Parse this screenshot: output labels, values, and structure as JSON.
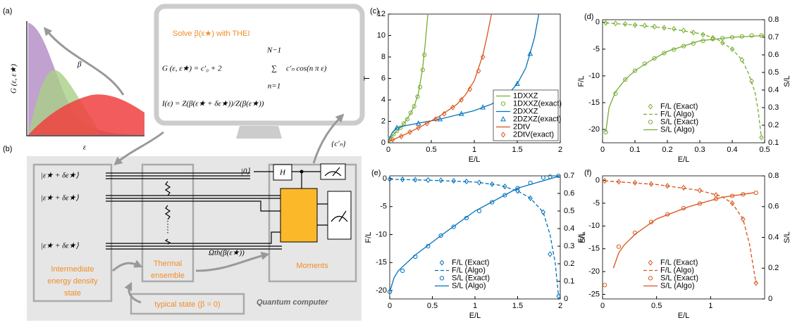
{
  "panel_a": {
    "label": "(a)",
    "y_label": "G (ε, ε★)",
    "x_label": "ε",
    "arrow_label": "β"
  },
  "monitor": {
    "title": "Solve β(ε★) with THEI",
    "eq1_left": "G (ε, ε★) = c′₀ + 2",
    "sum_top": "N−1",
    "sum": "∑",
    "sum_bottom": "n=1",
    "eq1_right": "c′ₙ cos(n π ε)",
    "eq2": "I(ε) = Z(β(ε★ + δε★))/Z(β(ε★))"
  },
  "panel_b": {
    "label": "(b)",
    "kets": [
      "|ε★ + δε★⟩",
      "|ε★ + δε★⟩",
      "|ε★ + δε★⟩"
    ],
    "ancilla": "|0⟩",
    "gate": "H",
    "omega": "Ωth(β(ε★))",
    "coefficients": "{c′ₙ}",
    "intermediate": [
      "Intermediate",
      "energy density",
      "state"
    ],
    "thermal": [
      "Thermal",
      "ensemble"
    ],
    "moments": "Moments",
    "typical": "typical state (β = 0)",
    "computer": "Quantum computer"
  },
  "chart_data": [
    {
      "type": "line",
      "label": "(c)",
      "x_label": "E/L",
      "y_label": "T",
      "xlim": [
        0,
        2
      ],
      "xticks": [
        0,
        0.5,
        1,
        1.5,
        2
      ],
      "ylim": [
        0,
        12
      ],
      "yticks": [
        0,
        2,
        4,
        6,
        8,
        10,
        12
      ],
      "legend": "southeast",
      "series": [
        {
          "name": "1DXXZ",
          "color": "#77ac30",
          "style": "solid",
          "marker": "none",
          "x": [
            0,
            0.05,
            0.1,
            0.15,
            0.2,
            0.25,
            0.3,
            0.35,
            0.4,
            0.43,
            0.46
          ],
          "values": [
            0.2,
            0.7,
            1.1,
            1.5,
            2,
            2.6,
            3.4,
            4.6,
            7,
            9.3,
            12
          ]
        },
        {
          "name": "1DXXZ(exact)",
          "color": "#77ac30",
          "style": "none",
          "marker": "circle",
          "x": [
            0.02,
            0.06,
            0.1,
            0.14,
            0.18,
            0.22,
            0.26,
            0.3,
            0.34,
            0.37,
            0.4,
            0.42
          ],
          "values": [
            0.4,
            0.8,
            1.1,
            1.4,
            1.8,
            2.2,
            2.8,
            3.4,
            4.3,
            5.2,
            6.8,
            8.2
          ]
        },
        {
          "name": "2DXXZ",
          "color": "#0072bd",
          "style": "solid",
          "marker": "none",
          "x": [
            0,
            0.05,
            0.1,
            0.2,
            0.4,
            0.6,
            0.8,
            1.0,
            1.2,
            1.4,
            1.5,
            1.6,
            1.7,
            1.75
          ],
          "values": [
            0.2,
            1.0,
            1.4,
            1.6,
            1.9,
            2.2,
            2.6,
            3.0,
            3.6,
            4.6,
            5.5,
            7,
            9.8,
            12
          ]
        },
        {
          "name": "2DZXZ(exact)",
          "color": "#0072bd",
          "style": "none",
          "marker": "triangle",
          "x": [
            0.1,
            0.35,
            0.6,
            0.85,
            1.1,
            1.3,
            1.5,
            1.65
          ],
          "values": [
            1.4,
            1.8,
            2.2,
            2.7,
            3.3,
            4,
            5.5,
            8.3
          ]
        },
        {
          "name": "2DtV",
          "color": "#d95319",
          "style": "solid",
          "marker": "none",
          "x": [
            0,
            0.2,
            0.4,
            0.6,
            0.8,
            0.9,
            1.0,
            1.1,
            1.15,
            1.2
          ],
          "values": [
            0.1,
            0.8,
            1.6,
            2.5,
            3.6,
            4.5,
            5.8,
            8.2,
            10,
            12
          ]
        },
        {
          "name": "2DtV(exact)",
          "color": "#d95319",
          "style": "none",
          "marker": "diamond",
          "x": [
            0.05,
            0.15,
            0.25,
            0.35,
            0.45,
            0.55,
            0.65,
            0.75,
            0.85,
            0.95,
            1.05,
            1.1
          ],
          "values": [
            0.3,
            0.6,
            1,
            1.4,
            1.8,
            2.2,
            2.7,
            3.3,
            4,
            5,
            6.7,
            8
          ]
        }
      ]
    },
    {
      "type": "line",
      "label": "(d)",
      "x_label": "E/L",
      "y_label": "F/L",
      "y2_label": "S/L",
      "xlim": [
        0,
        0.5
      ],
      "xticks": [
        0,
        0.1,
        0.2,
        0.3,
        0.4,
        0.5
      ],
      "ylim": [
        -22.5,
        0.5
      ],
      "yticks": [
        0,
        -5,
        -10,
        -15,
        -20
      ],
      "y2lim": [
        0.1,
        0.8
      ],
      "y2ticks": [
        0.1,
        0.2,
        0.3,
        0.4,
        0.5,
        0.6,
        0.7,
        0.8
      ],
      "legend": "south",
      "series": [
        {
          "name": "F/L (Exact)",
          "color": "#77ac30",
          "style": "none",
          "marker": "diamond",
          "x": [
            0.01,
            0.04,
            0.07,
            0.1,
            0.13,
            0.16,
            0.19,
            0.22,
            0.25,
            0.28,
            0.31,
            0.34,
            0.37,
            0.4,
            0.43,
            0.46,
            0.49
          ],
          "values": [
            -0.1,
            -0.2,
            -0.3,
            -0.5,
            -0.6,
            -0.8,
            -1,
            -1.2,
            -1.5,
            -1.9,
            -2.3,
            -2.9,
            -3.8,
            -5,
            -7,
            -11,
            -21.5
          ]
        },
        {
          "name": "F/L (Algo)",
          "color": "#77ac30",
          "style": "dashed",
          "marker": "none",
          "x": [
            0.01,
            0.1,
            0.2,
            0.3,
            0.35,
            0.4,
            0.43,
            0.45,
            0.47,
            0.48,
            0.49
          ],
          "values": [
            -0.1,
            -0.5,
            -1.1,
            -2.1,
            -3,
            -5,
            -7,
            -9.5,
            -13,
            -16.5,
            -21.5
          ]
        },
        {
          "name": "S/L (Exact)",
          "color": "#77ac30",
          "style": "none",
          "marker": "circle",
          "axis": "y2",
          "x": [
            0.01,
            0.04,
            0.07,
            0.1,
            0.13,
            0.16,
            0.19,
            0.22,
            0.25,
            0.28,
            0.31,
            0.34,
            0.37,
            0.4,
            0.43,
            0.46,
            0.49
          ],
          "values": [
            0.16,
            0.38,
            0.46,
            0.51,
            0.55,
            0.58,
            0.61,
            0.63,
            0.65,
            0.665,
            0.68,
            0.69,
            0.695,
            0.7,
            0.705,
            0.71,
            0.71
          ]
        },
        {
          "name": "S/L (Algo)",
          "color": "#77ac30",
          "style": "solid",
          "marker": "none",
          "axis": "y2",
          "x": [
            0.01,
            0.02,
            0.04,
            0.07,
            0.1,
            0.15,
            0.2,
            0.3,
            0.4,
            0.5
          ],
          "values": [
            0.16,
            0.3,
            0.39,
            0.46,
            0.51,
            0.57,
            0.62,
            0.68,
            0.7,
            0.71
          ]
        }
      ]
    },
    {
      "type": "line",
      "label": "(e)",
      "x_label": "E/L",
      "y_label": "F/L",
      "y2_label": "S/L",
      "xlim": [
        0,
        2
      ],
      "xticks": [
        0,
        0.5,
        1,
        1.5,
        2
      ],
      "ylim": [
        -21.5,
        0.5
      ],
      "yticks": [
        0,
        -5,
        -10,
        -15,
        -20
      ],
      "y2lim": [
        0,
        0.7
      ],
      "y2ticks": [
        0,
        0.1,
        0.2,
        0.3,
        0.4,
        0.5,
        0.6,
        0.7
      ],
      "legend": "south",
      "series": [
        {
          "name": "F/L (Exact)",
          "color": "#0072bd",
          "style": "none",
          "marker": "diamond",
          "x": [
            0,
            0.15,
            0.3,
            0.45,
            0.6,
            0.75,
            0.9,
            1.05,
            1.2,
            1.35,
            1.5,
            1.65,
            1.8,
            1.88,
            1.98
          ],
          "values": [
            -0.1,
            -0.15,
            -0.2,
            -0.25,
            -0.3,
            -0.4,
            -0.5,
            -0.7,
            -1,
            -1.4,
            -2.2,
            -3.5,
            -6,
            -13.5,
            -21
          ]
        },
        {
          "name": "F/L (Algo)",
          "color": "#0072bd",
          "style": "dashed",
          "marker": "none",
          "x": [
            0,
            0.5,
            1,
            1.3,
            1.5,
            1.65,
            1.8,
            1.88,
            1.94,
            1.98
          ],
          "values": [
            -0.1,
            -0.3,
            -0.6,
            -1.2,
            -2.2,
            -3.5,
            -6,
            -10,
            -15,
            -21
          ]
        },
        {
          "name": "S/L (Exact)",
          "color": "#0072bd",
          "style": "none",
          "marker": "circle",
          "axis": "y2",
          "x": [
            0,
            0.15,
            0.3,
            0.45,
            0.6,
            0.75,
            0.9,
            1.05,
            1.2,
            1.35,
            1.5,
            1.65,
            1.8,
            1.88,
            1.98
          ],
          "values": [
            0.04,
            0.16,
            0.24,
            0.3,
            0.36,
            0.41,
            0.46,
            0.5,
            0.55,
            0.59,
            0.63,
            0.66,
            0.69,
            0.695,
            0.7
          ]
        },
        {
          "name": "S/L (Algo)",
          "color": "#0072bd",
          "style": "solid",
          "marker": "none",
          "axis": "y2",
          "x": [
            0,
            0.05,
            0.1,
            0.3,
            0.6,
            1,
            1.5,
            2
          ],
          "values": [
            0.04,
            0.12,
            0.16,
            0.25,
            0.36,
            0.5,
            0.63,
            0.7
          ]
        }
      ]
    },
    {
      "type": "line",
      "label": "(f)",
      "x_label": "E/L",
      "y_label": "F/L",
      "y2_label": "S/L",
      "xlim": [
        0,
        1.5
      ],
      "xticks": [
        0,
        0.5,
        1
      ],
      "ylim": [
        -26,
        1
      ],
      "yticks": [
        0,
        -5,
        -10,
        -15,
        -20,
        -25
      ],
      "y2lim": [
        0,
        0.8
      ],
      "y2ticks": [
        0,
        0.2,
        0.4,
        0.6,
        0.8
      ],
      "legend": "south",
      "series": [
        {
          "name": "F/L (Exact)",
          "color": "#d95319",
          "style": "none",
          "marker": "diamond",
          "x": [
            0.02,
            0.15,
            0.3,
            0.45,
            0.6,
            0.75,
            0.9,
            1.05,
            1.2,
            1.3,
            1.42
          ],
          "values": [
            -0.1,
            -0.3,
            -0.5,
            -0.8,
            -1.2,
            -1.6,
            -2.2,
            -3.2,
            -5,
            -8.5,
            -22.5
          ]
        },
        {
          "name": "F/L (Algo)",
          "color": "#d95319",
          "style": "dashed",
          "marker": "none",
          "x": [
            0.02,
            0.5,
            0.9,
            1.1,
            1.2,
            1.3,
            1.36,
            1.42
          ],
          "values": [
            -0.1,
            -0.9,
            -2.2,
            -3.5,
            -5,
            -8.5,
            -14,
            -22.5
          ]
        },
        {
          "name": "S/L (Exact)",
          "color": "#d95319",
          "style": "none",
          "marker": "circle",
          "axis": "y2",
          "x": [
            0.02,
            0.15,
            0.3,
            0.45,
            0.6,
            0.75,
            0.9,
            1.05,
            1.2,
            1.3,
            1.42
          ],
          "values": [
            0.09,
            0.34,
            0.43,
            0.5,
            0.55,
            0.59,
            0.62,
            0.65,
            0.67,
            0.68,
            0.69
          ]
        },
        {
          "name": "S/L (Algo)",
          "color": "#d95319",
          "style": "solid",
          "marker": "none",
          "axis": "y2",
          "x": [
            0.1,
            0.15,
            0.2,
            0.3,
            0.5,
            0.8,
            1.1,
            1.4
          ],
          "values": [
            0.2,
            0.3,
            0.35,
            0.42,
            0.52,
            0.6,
            0.66,
            0.69
          ]
        }
      ]
    }
  ]
}
